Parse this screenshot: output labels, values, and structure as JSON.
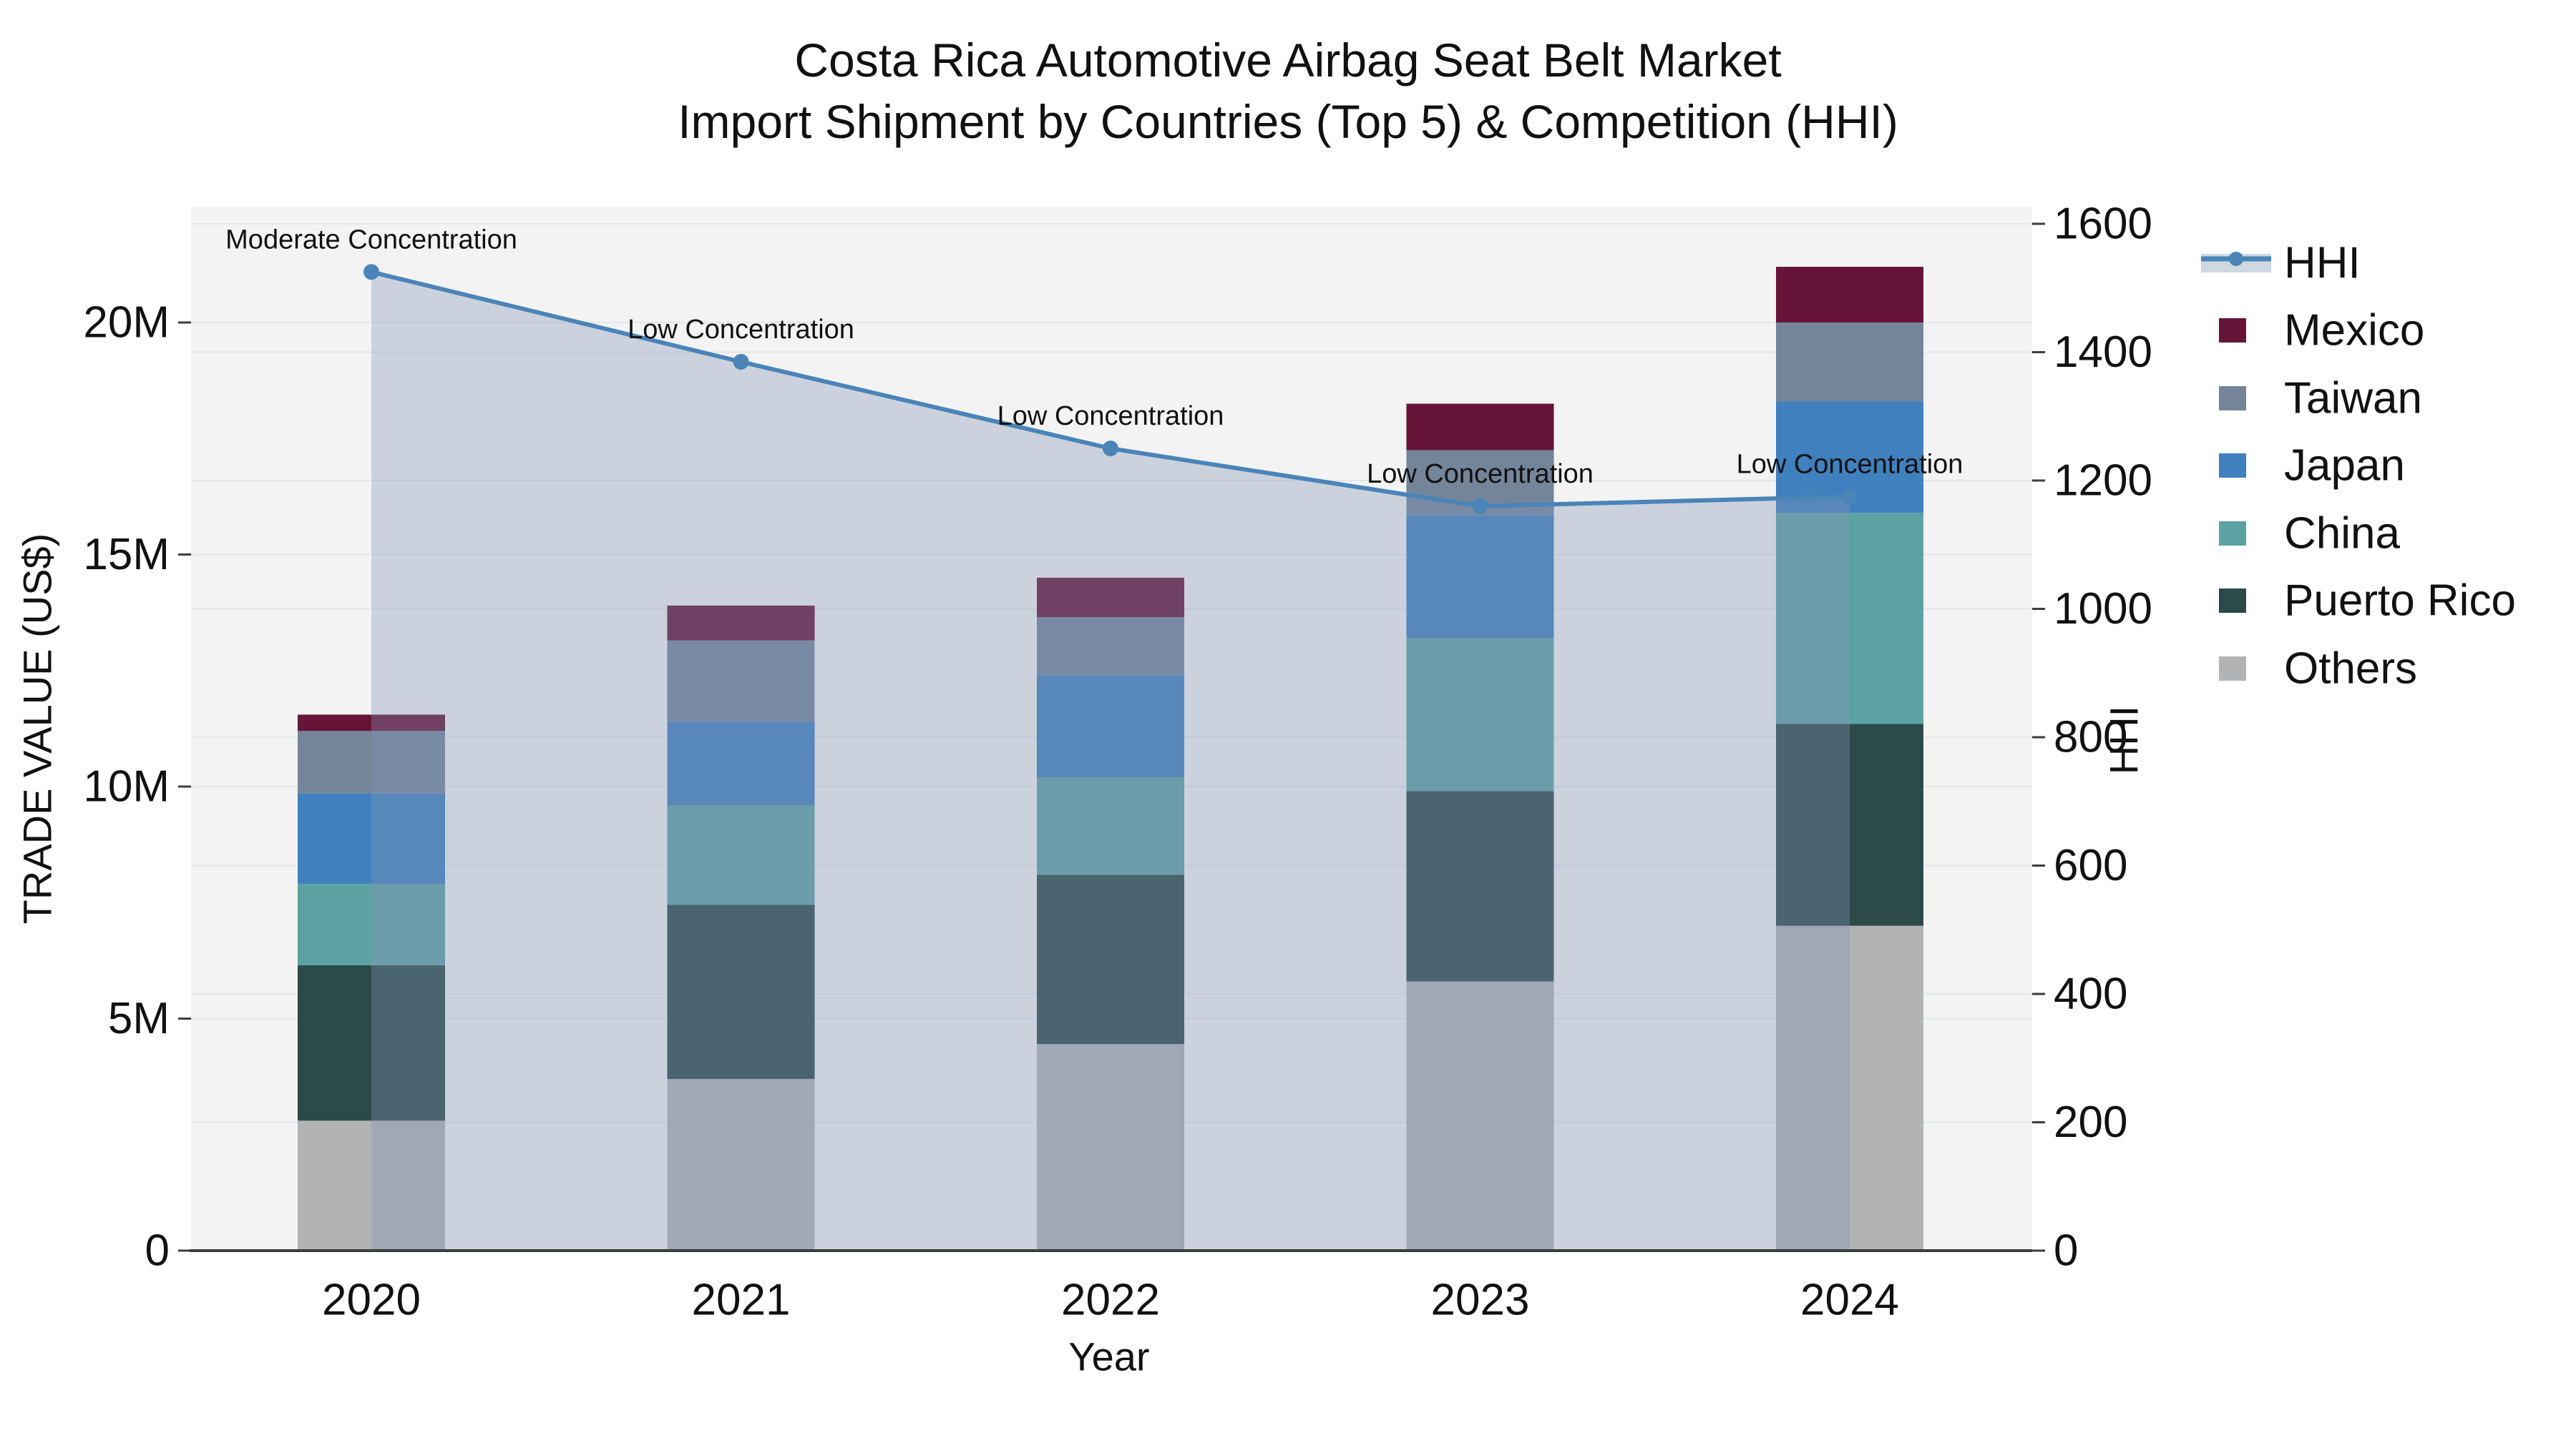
{
  "title": {
    "line1": "Costa Rica Automotive Airbag Seat Belt Market",
    "line2": "Import Shipment by Countries (Top 5) & Competition (HHI)"
  },
  "axes": {
    "y_left": {
      "title": "TRADE VALUE (US$)",
      "tick_labels": [
        "0",
        "5M",
        "10M",
        "15M",
        "20M"
      ],
      "tick_values": [
        0,
        5,
        10,
        15,
        20
      ],
      "unit": "million US$"
    },
    "y_right": {
      "title": "HHI",
      "tick_labels": [
        "0",
        "200",
        "400",
        "600",
        "800",
        "1000",
        "1200",
        "1400",
        "1600"
      ],
      "tick_values": [
        0,
        200,
        400,
        600,
        800,
        1000,
        1200,
        1400,
        1600
      ]
    },
    "x": {
      "title": "Year",
      "categories": [
        "2020",
        "2021",
        "2022",
        "2023",
        "2024"
      ]
    }
  },
  "legend": {
    "items": [
      {
        "label": "HHI",
        "type": "line",
        "color": "#4A84B8"
      },
      {
        "label": "Mexico",
        "type": "swatch",
        "color": "#661538"
      },
      {
        "label": "Taiwan",
        "type": "swatch",
        "color": "#74859A"
      },
      {
        "label": "Japan",
        "type": "swatch",
        "color": "#4080BE"
      },
      {
        "label": "China",
        "type": "swatch",
        "color": "#5DA2A2"
      },
      {
        "label": "Puerto Rico",
        "type": "swatch",
        "color": "#2C4A4A"
      },
      {
        "label": "Others",
        "type": "swatch",
        "color": "#B1B3B4"
      }
    ]
  },
  "annotations": [
    {
      "year": "2020",
      "text": "Moderate Concentration"
    },
    {
      "year": "2021",
      "text": "Low Concentration"
    },
    {
      "year": "2022",
      "text": "Low Concentration"
    },
    {
      "year": "2023",
      "text": "Low Concentration"
    },
    {
      "year": "2024",
      "text": "Low Concentration"
    }
  ],
  "chart_data": {
    "type": "bar",
    "subtype": "stacked-bars-with-line",
    "title": "Costa Rica Automotive Airbag Seat Belt Market — Import Shipment by Countries (Top 5) & Competition (HHI)",
    "categories": [
      "2020",
      "2021",
      "2022",
      "2023",
      "2024"
    ],
    "xlabel": "Year",
    "ylabel_left": "TRADE VALUE (US$)",
    "ylabel_right": "HHI",
    "ylim_left_millions": [
      0,
      22.5
    ],
    "ylim_right": [
      0,
      1625
    ],
    "grid": true,
    "legend_position": "right",
    "series": [
      {
        "name": "Others",
        "stack_order": 1,
        "color": "#B1B3B4",
        "values_millions": [
          2.8,
          3.7,
          4.45,
          5.8,
          7.0
        ]
      },
      {
        "name": "Puerto Rico",
        "stack_order": 2,
        "color": "#2C4A4A",
        "values_millions": [
          3.35,
          3.75,
          3.65,
          4.1,
          4.35
        ]
      },
      {
        "name": "China",
        "stack_order": 3,
        "color": "#5DA2A2",
        "values_millions": [
          1.75,
          2.15,
          2.1,
          3.3,
          4.55
        ]
      },
      {
        "name": "Japan",
        "stack_order": 4,
        "color": "#4080BE",
        "values_millions": [
          1.95,
          1.8,
          2.2,
          2.65,
          2.4
        ]
      },
      {
        "name": "Taiwan",
        "stack_order": 5,
        "color": "#74859A",
        "values_millions": [
          1.35,
          1.75,
          1.25,
          1.4,
          1.7
        ]
      },
      {
        "name": "Mexico",
        "stack_order": 6,
        "color": "#661538",
        "values_millions": [
          0.35,
          0.75,
          0.85,
          1.0,
          1.2
        ]
      }
    ],
    "totals_millions": [
      11.55,
      13.9,
      14.5,
      18.25,
      21.2
    ],
    "line_series": {
      "name": "HHI",
      "color": "#4A84B8",
      "area_fill": "rgba(133,148,182,0.35)",
      "values": [
        1525,
        1385,
        1250,
        1160,
        1175
      ],
      "point_labels": [
        "Moderate Concentration",
        "Low Concentration",
        "Low Concentration",
        "Low Concentration",
        "Low Concentration"
      ]
    }
  },
  "colors": {
    "plot_bg": "#F2F3F2",
    "grid": "#E4E6E8",
    "axis_line": "#3D3D3D",
    "hhi_line": "#4A84B8",
    "hhi_area": "rgba(133,148,182,0.35)",
    "legend_band": "#CFD7E1",
    "text": "#111111"
  }
}
